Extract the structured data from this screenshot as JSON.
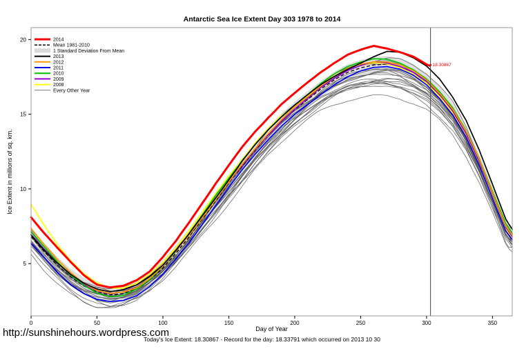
{
  "footer": {
    "url": "http://sunshinehours.wordpress.com",
    "caption": "Today's Ice Extent: 18.30867 - Record for the day: 18.33791 which occurred on 2013 10 30"
  },
  "chart_data": {
    "type": "line",
    "title": "Antarctic Sea Ice Extent Day 303 1978 to 2014",
    "xlabel": "Day of Year",
    "ylabel": "Ice Extent in millions of sq. km.",
    "xlim": [
      0,
      365
    ],
    "ylim": [
      1.5,
      20.8
    ],
    "xticks": [
      0,
      50,
      100,
      150,
      200,
      250,
      300,
      350
    ],
    "yticks": [
      5,
      10,
      15,
      20
    ],
    "grid": false,
    "legend_position": "top-left",
    "vline": {
      "x": 303,
      "color": "#444444"
    },
    "annotation": {
      "text": "18.30867",
      "x": 303,
      "y": 18.30867,
      "color": "#ff0000"
    },
    "x": [
      0,
      10,
      20,
      30,
      40,
      50,
      60,
      70,
      80,
      90,
      100,
      110,
      120,
      130,
      140,
      150,
      160,
      170,
      180,
      190,
      200,
      210,
      220,
      230,
      240,
      250,
      260,
      270,
      280,
      290,
      300,
      310,
      320,
      330,
      340,
      350,
      360,
      365
    ],
    "band": {
      "label": "1 Standard Deviation From Mean",
      "sd": 0.55,
      "color": "#d9d9d9"
    },
    "mean": {
      "label": "Mean 1981-2010",
      "color": "#000000",
      "width": 1.3,
      "dash": "5,3",
      "y": [
        6.8,
        5.8,
        4.9,
        4.1,
        3.5,
        3.1,
        2.9,
        3.0,
        3.3,
        3.9,
        4.7,
        5.7,
        6.8,
        8.0,
        9.2,
        10.4,
        11.5,
        12.6,
        13.6,
        14.5,
        15.3,
        16.0,
        16.7,
        17.3,
        17.8,
        18.1,
        18.3,
        18.35,
        18.2,
        17.8,
        17.2,
        16.3,
        15.2,
        13.7,
        11.8,
        9.6,
        7.4,
        6.8
      ]
    },
    "series": [
      {
        "label": "2014",
        "color": "#ff0000",
        "width": 3,
        "amp": 0.12,
        "seed": 101,
        "x": [
          0,
          10,
          20,
          30,
          40,
          50,
          60,
          70,
          80,
          90,
          100,
          110,
          120,
          130,
          140,
          150,
          160,
          170,
          180,
          190,
          200,
          210,
          220,
          230,
          240,
          250,
          260,
          270,
          280,
          290,
          300,
          303
        ],
        "y": [
          8.1,
          7.0,
          6.0,
          5.1,
          4.3,
          3.7,
          3.5,
          3.6,
          4.0,
          4.6,
          5.5,
          6.5,
          7.7,
          9.0,
          10.3,
          11.5,
          12.7,
          13.8,
          14.8,
          15.7,
          16.4,
          17.1,
          17.8,
          18.4,
          18.9,
          19.2,
          19.5,
          19.4,
          19.2,
          18.9,
          18.4,
          18.30867
        ]
      },
      {
        "label": "2013",
        "color": "#000000",
        "width": 1.7,
        "amp": 0.08,
        "seed": 102,
        "y": [
          7.0,
          6.0,
          5.1,
          4.3,
          3.7,
          3.3,
          3.1,
          3.2,
          3.5,
          4.1,
          4.9,
          5.9,
          7.0,
          8.2,
          9.4,
          10.6,
          11.8,
          12.9,
          13.9,
          14.8,
          15.6,
          16.3,
          17.0,
          17.6,
          18.1,
          18.5,
          18.9,
          19.25,
          19.2,
          18.8,
          18.2,
          17.3,
          16.1,
          14.6,
          12.6,
          10.3,
          8.0,
          7.3
        ]
      },
      {
        "label": "2012",
        "color": "#ff9900",
        "width": 1.7,
        "amp": 0.07,
        "seed": 103,
        "y": [
          7.3,
          6.2,
          5.2,
          4.4,
          3.7,
          3.2,
          3.0,
          3.1,
          3.4,
          4.0,
          4.8,
          5.8,
          6.9,
          8.1,
          9.3,
          10.5,
          11.7,
          12.8,
          13.8,
          14.7,
          15.5,
          16.2,
          16.9,
          17.5,
          18.0,
          18.3,
          18.5,
          18.5,
          18.3,
          17.9,
          17.3,
          16.4,
          15.3,
          13.8,
          11.9,
          9.7,
          7.5,
          6.9
        ]
      },
      {
        "label": "2011",
        "color": "#0000ee",
        "width": 1.7,
        "amp": 0.07,
        "seed": 104,
        "y": [
          6.4,
          5.4,
          4.4,
          3.6,
          3.0,
          2.6,
          2.45,
          2.55,
          2.9,
          3.5,
          4.3,
          5.3,
          6.4,
          7.6,
          8.8,
          10.0,
          11.2,
          12.3,
          13.3,
          14.2,
          15.0,
          15.7,
          16.4,
          17.0,
          17.5,
          17.9,
          18.15,
          18.2,
          18.0,
          17.6,
          17.0,
          16.1,
          15.0,
          13.5,
          11.6,
          9.4,
          7.2,
          6.6
        ]
      },
      {
        "label": "2010",
        "color": "#00c000",
        "width": 1.7,
        "amp": 0.07,
        "seed": 105,
        "y": [
          7.1,
          6.1,
          5.1,
          4.2,
          3.5,
          3.0,
          2.8,
          2.9,
          3.3,
          3.9,
          4.8,
          5.8,
          7.0,
          8.2,
          9.5,
          10.7,
          11.9,
          13.0,
          14.0,
          14.9,
          15.7,
          16.4,
          17.1,
          17.7,
          18.2,
          18.5,
          18.7,
          18.65,
          18.4,
          18.0,
          17.4,
          16.5,
          15.4,
          13.9,
          12.0,
          9.8,
          7.6,
          7.0
        ]
      },
      {
        "label": "2009",
        "color": "#9400d3",
        "width": 1.7,
        "amp": 0.07,
        "seed": 106,
        "y": [
          6.9,
          5.9,
          5.0,
          4.2,
          3.6,
          3.2,
          3.0,
          3.1,
          3.4,
          4.0,
          4.8,
          5.8,
          6.9,
          8.1,
          9.3,
          10.5,
          11.6,
          12.7,
          13.7,
          14.6,
          15.4,
          16.1,
          16.8,
          17.4,
          17.9,
          18.2,
          18.45,
          18.4,
          18.2,
          17.8,
          17.2,
          16.3,
          15.2,
          13.7,
          11.8,
          9.6,
          7.4,
          6.8
        ]
      },
      {
        "label": "2008",
        "color": "#ffff00",
        "width": 1.7,
        "amp": 0.07,
        "seed": 107,
        "y": [
          9.0,
          7.6,
          6.3,
          5.2,
          4.3,
          3.7,
          3.4,
          3.4,
          3.7,
          4.3,
          5.1,
          6.1,
          7.2,
          8.4,
          9.6,
          10.8,
          11.9,
          13.0,
          14.0,
          14.9,
          15.6,
          16.3,
          17.0,
          17.6,
          18.0,
          18.3,
          18.45,
          18.35,
          18.1,
          17.7,
          17.1,
          16.2,
          15.1,
          13.6,
          11.7,
          9.5,
          7.3,
          6.7
        ]
      }
    ],
    "other_years": {
      "label": "Every Other Year",
      "color": "#555555",
      "width": 0.8,
      "variants": [
        {
          "seed": 11,
          "base": -0.75,
          "peak": -1.1,
          "amp": 0.35
        },
        {
          "seed": 12,
          "base": -0.55,
          "peak": -0.8,
          "amp": 0.25
        },
        {
          "seed": 13,
          "base": -0.45,
          "peak": -0.5,
          "amp": 0.3
        },
        {
          "seed": 14,
          "base": -0.35,
          "peak": -0.9,
          "amp": 0.2
        },
        {
          "seed": 15,
          "base": -0.3,
          "peak": -0.3,
          "amp": 0.4
        },
        {
          "seed": 16,
          "base": -0.2,
          "peak": -0.6,
          "amp": 0.25
        },
        {
          "seed": 17,
          "base": -0.15,
          "peak": -0.2,
          "amp": 0.3
        },
        {
          "seed": 18,
          "base": -0.1,
          "peak": -1.0,
          "amp": 0.35
        },
        {
          "seed": 19,
          "base": -0.05,
          "peak": 0.1,
          "amp": 0.2
        },
        {
          "seed": 20,
          "base": 0.0,
          "peak": -0.4,
          "amp": 0.3
        },
        {
          "seed": 21,
          "base": 0.05,
          "peak": -0.7,
          "amp": 0.25
        },
        {
          "seed": 22,
          "base": 0.1,
          "peak": 0.2,
          "amp": 0.35
        },
        {
          "seed": 23,
          "base": 0.2,
          "peak": -0.5,
          "amp": 0.3
        },
        {
          "seed": 24,
          "base": 0.3,
          "peak": -0.3,
          "amp": 0.25
        },
        {
          "seed": 25,
          "base": 0.4,
          "peak": -0.9,
          "amp": 0.2
        },
        {
          "seed": 26,
          "base": -0.65,
          "peak": -0.2,
          "amp": 0.4
        },
        {
          "seed": 27,
          "base": -0.4,
          "peak": -0.6,
          "amp": 0.3
        },
        {
          "seed": 28,
          "base": 0.15,
          "peak": -1.2,
          "amp": 0.25
        }
      ]
    },
    "legend": [
      {
        "label": "2014",
        "swatch": "line",
        "color": "#ff0000",
        "width": 3
      },
      {
        "label": "Mean 1981-2010",
        "swatch": "dash",
        "color": "#000000",
        "width": 1.5
      },
      {
        "label": "1 Standard Deviation From Mean",
        "swatch": "band",
        "color": "#d9d9d9",
        "width": 6
      },
      {
        "label": "2013",
        "swatch": "line",
        "color": "#000000",
        "width": 2
      },
      {
        "label": "2012",
        "swatch": "line",
        "color": "#ff9900",
        "width": 2
      },
      {
        "label": "2011",
        "swatch": "line",
        "color": "#0000ee",
        "width": 2
      },
      {
        "label": "2010",
        "swatch": "line",
        "color": "#00c000",
        "width": 2
      },
      {
        "label": "2009",
        "swatch": "line",
        "color": "#9400d3",
        "width": 2
      },
      {
        "label": "2008",
        "swatch": "line",
        "color": "#ffff00",
        "width": 2
      },
      {
        "label": "Every Other Year",
        "swatch": "line",
        "color": "#777777",
        "width": 1
      }
    ]
  }
}
